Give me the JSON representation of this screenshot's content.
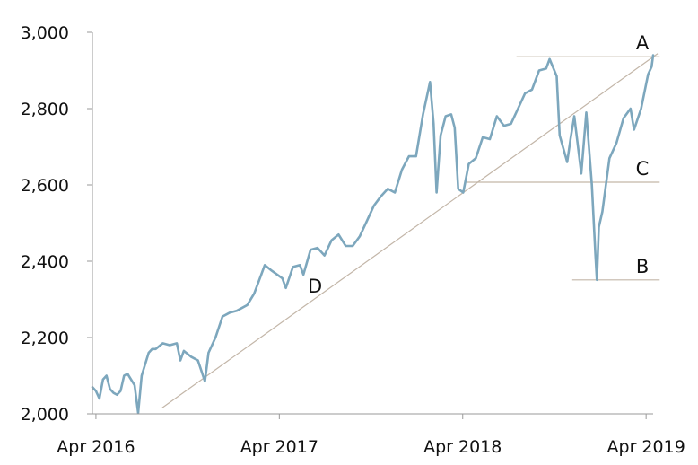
{
  "chart_data": {
    "type": "line",
    "title": "",
    "xlabel": "",
    "ylabel": "",
    "ylim": [
      2000,
      3000
    ],
    "xlim": [
      "2016-03-25",
      "2019-04-15"
    ],
    "grid": false,
    "legend": "none",
    "y_ticks": [
      {
        "value": 2000,
        "label": "2,000"
      },
      {
        "value": 2200,
        "label": "2,200"
      },
      {
        "value": 2400,
        "label": "2,400"
      },
      {
        "value": 2600,
        "label": "2,600"
      },
      {
        "value": 2800,
        "label": "2,800"
      },
      {
        "value": 3000,
        "label": "3,000"
      }
    ],
    "x_ticks": [
      {
        "date": "2016-04-01",
        "label": "Apr 2016"
      },
      {
        "date": "2017-04-01",
        "label": "Apr 2017"
      },
      {
        "date": "2018-04-01",
        "label": "Apr 2018"
      },
      {
        "date": "2019-04-01",
        "label": "Apr 2019"
      }
    ],
    "series": [
      {
        "color": "#7da7bd",
        "points": [
          [
            "2016-03-25",
            2070
          ],
          [
            "2016-04-01",
            2060
          ],
          [
            "2016-04-08",
            2040
          ],
          [
            "2016-04-15",
            2090
          ],
          [
            "2016-04-22",
            2100
          ],
          [
            "2016-04-29",
            2065
          ],
          [
            "2016-05-06",
            2055
          ],
          [
            "2016-05-13",
            2050
          ],
          [
            "2016-05-20",
            2060
          ],
          [
            "2016-05-27",
            2100
          ],
          [
            "2016-06-03",
            2105
          ],
          [
            "2016-06-10",
            2090
          ],
          [
            "2016-06-17",
            2075
          ],
          [
            "2016-06-24",
            2002
          ],
          [
            "2016-07-01",
            2100
          ],
          [
            "2016-07-08",
            2130
          ],
          [
            "2016-07-15",
            2160
          ],
          [
            "2016-07-22",
            2170
          ],
          [
            "2016-07-29",
            2170
          ],
          [
            "2016-08-12",
            2185
          ],
          [
            "2016-08-26",
            2180
          ],
          [
            "2016-09-09",
            2185
          ],
          [
            "2016-09-16",
            2140
          ],
          [
            "2016-09-23",
            2165
          ],
          [
            "2016-10-07",
            2150
          ],
          [
            "2016-10-21",
            2140
          ],
          [
            "2016-11-04",
            2085
          ],
          [
            "2016-11-11",
            2160
          ],
          [
            "2016-11-25",
            2200
          ],
          [
            "2016-12-09",
            2255
          ],
          [
            "2016-12-23",
            2265
          ],
          [
            "2017-01-06",
            2270
          ],
          [
            "2017-01-27",
            2285
          ],
          [
            "2017-02-10",
            2315
          ],
          [
            "2017-02-24",
            2365
          ],
          [
            "2017-03-03",
            2390
          ],
          [
            "2017-03-17",
            2375
          ],
          [
            "2017-04-07",
            2355
          ],
          [
            "2017-04-14",
            2330
          ],
          [
            "2017-04-28",
            2385
          ],
          [
            "2017-05-12",
            2390
          ],
          [
            "2017-05-19",
            2365
          ],
          [
            "2017-06-02",
            2430
          ],
          [
            "2017-06-16",
            2435
          ],
          [
            "2017-06-30",
            2415
          ],
          [
            "2017-07-14",
            2455
          ],
          [
            "2017-07-28",
            2470
          ],
          [
            "2017-08-11",
            2440
          ],
          [
            "2017-08-25",
            2440
          ],
          [
            "2017-09-08",
            2465
          ],
          [
            "2017-09-22",
            2505
          ],
          [
            "2017-10-06",
            2545
          ],
          [
            "2017-10-20",
            2570
          ],
          [
            "2017-11-03",
            2590
          ],
          [
            "2017-11-17",
            2580
          ],
          [
            "2017-12-01",
            2640
          ],
          [
            "2017-12-15",
            2675
          ],
          [
            "2017-12-29",
            2675
          ],
          [
            "2018-01-12",
            2785
          ],
          [
            "2018-01-26",
            2870
          ],
          [
            "2018-02-02",
            2760
          ],
          [
            "2018-02-08",
            2580
          ],
          [
            "2018-02-16",
            2730
          ],
          [
            "2018-02-26",
            2780
          ],
          [
            "2018-03-09",
            2785
          ],
          [
            "2018-03-16",
            2750
          ],
          [
            "2018-03-23",
            2590
          ],
          [
            "2018-04-02",
            2580
          ],
          [
            "2018-04-13",
            2655
          ],
          [
            "2018-04-27",
            2670
          ],
          [
            "2018-05-11",
            2725
          ],
          [
            "2018-05-25",
            2720
          ],
          [
            "2018-06-08",
            2780
          ],
          [
            "2018-06-22",
            2755
          ],
          [
            "2018-07-06",
            2760
          ],
          [
            "2018-07-20",
            2800
          ],
          [
            "2018-08-03",
            2840
          ],
          [
            "2018-08-17",
            2850
          ],
          [
            "2018-08-31",
            2900
          ],
          [
            "2018-09-14",
            2905
          ],
          [
            "2018-09-21",
            2930
          ],
          [
            "2018-10-05",
            2885
          ],
          [
            "2018-10-11",
            2730
          ],
          [
            "2018-10-26",
            2660
          ],
          [
            "2018-11-02",
            2725
          ],
          [
            "2018-11-09",
            2780
          ],
          [
            "2018-11-23",
            2630
          ],
          [
            "2018-12-03",
            2790
          ],
          [
            "2018-12-14",
            2600
          ],
          [
            "2018-12-21",
            2420
          ],
          [
            "2018-12-24",
            2351
          ],
          [
            "2018-12-28",
            2490
          ],
          [
            "2019-01-04",
            2530
          ],
          [
            "2019-01-18",
            2670
          ],
          [
            "2019-02-01",
            2710
          ],
          [
            "2019-02-15",
            2775
          ],
          [
            "2019-03-01",
            2800
          ],
          [
            "2019-03-08",
            2745
          ],
          [
            "2019-03-22",
            2800
          ],
          [
            "2019-04-05",
            2890
          ],
          [
            "2019-04-12",
            2910
          ],
          [
            "2019-04-15",
            2940
          ]
        ]
      }
    ],
    "annotations": [
      {
        "label": "A",
        "type": "hline",
        "y": 2936,
        "x_from": "2018-07-17",
        "x_to": "2019-04-28"
      },
      {
        "label": "B",
        "type": "hline",
        "y": 2351,
        "x_from": "2018-11-05",
        "x_to": "2019-04-28"
      },
      {
        "label": "C",
        "type": "hline",
        "y": 2607,
        "x_from": "2018-04-08",
        "x_to": "2019-04-28"
      },
      {
        "label": "D",
        "type": "trendline",
        "start": [
          "2016-08-11",
          2016
        ],
        "end": [
          "2019-04-24",
          2944
        ]
      }
    ]
  },
  "colors": {
    "series": "#7da7bd",
    "reference_lines": "#c3b6a8",
    "axis": "#9a9a9a"
  }
}
